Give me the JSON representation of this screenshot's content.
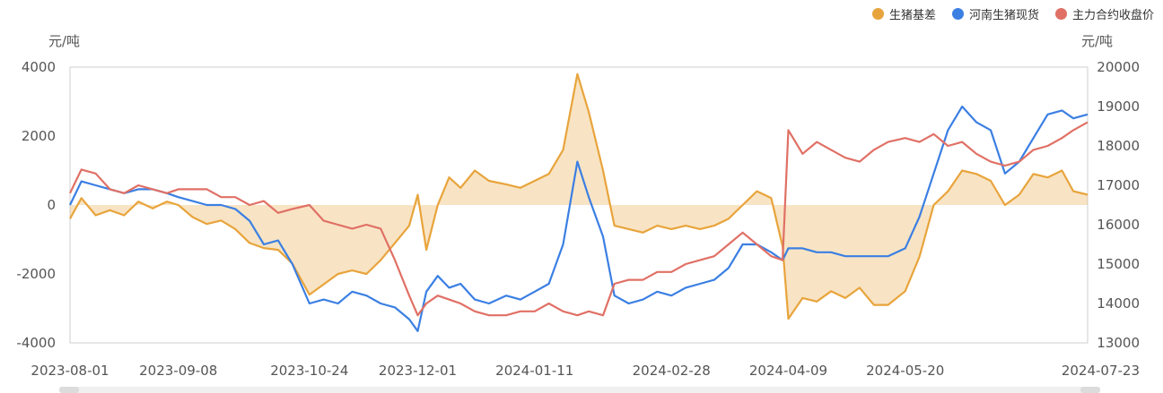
{
  "legend": [
    {
      "label": "生猪基差",
      "color": "#E8A43C"
    },
    {
      "label": "河南生猪现货",
      "color": "#3B7FE3"
    },
    {
      "label": "主力合约收盘价",
      "color": "#E07065"
    }
  ],
  "chart_data": {
    "type": "line",
    "left_unit": "元/吨",
    "right_unit": "元/吨",
    "left_axis": {
      "min": -4000,
      "max": 4000,
      "ticks": [
        -4000,
        -2000,
        0,
        2000,
        4000
      ]
    },
    "right_axis": {
      "min": 13000,
      "max": 20000,
      "ticks": [
        13000,
        14000,
        15000,
        16000,
        17000,
        18000,
        19000,
        20000
      ]
    },
    "x_start": "2023-08-01",
    "x_end": "2024-07-23",
    "x_ticks": [
      "2023-08-01",
      "2023-09-08",
      "2023-10-24",
      "2023-12-01",
      "2024-01-11",
      "2024-02-28",
      "2024-04-09",
      "2024-05-20",
      "2024-07-23"
    ],
    "series": [
      {
        "name": "生猪基差",
        "axis": "left",
        "color": "#E8A43C",
        "fill": true,
        "points": [
          [
            "2023-08-01",
            -400
          ],
          [
            "2023-08-05",
            200
          ],
          [
            "2023-08-10",
            -300
          ],
          [
            "2023-08-15",
            -150
          ],
          [
            "2023-08-20",
            -300
          ],
          [
            "2023-08-25",
            100
          ],
          [
            "2023-08-30",
            -100
          ],
          [
            "2023-09-04",
            100
          ],
          [
            "2023-09-08",
            0
          ],
          [
            "2023-09-13",
            -350
          ],
          [
            "2023-09-18",
            -550
          ],
          [
            "2023-09-23",
            -450
          ],
          [
            "2023-09-28",
            -700
          ],
          [
            "2023-10-03",
            -1100
          ],
          [
            "2023-10-08",
            -1250
          ],
          [
            "2023-10-13",
            -1300
          ],
          [
            "2023-10-18",
            -1700
          ],
          [
            "2023-10-24",
            -2600
          ],
          [
            "2023-10-29",
            -2300
          ],
          [
            "2023-11-03",
            -2000
          ],
          [
            "2023-11-08",
            -1900
          ],
          [
            "2023-11-13",
            -2000
          ],
          [
            "2023-11-18",
            -1600
          ],
          [
            "2023-11-23",
            -1100
          ],
          [
            "2023-11-28",
            -600
          ],
          [
            "2023-12-01",
            300
          ],
          [
            "2023-12-04",
            -1300
          ],
          [
            "2023-12-08",
            0
          ],
          [
            "2023-12-12",
            800
          ],
          [
            "2023-12-16",
            500
          ],
          [
            "2023-12-21",
            1000
          ],
          [
            "2023-12-26",
            700
          ],
          [
            "2024-01-01",
            600
          ],
          [
            "2024-01-06",
            500
          ],
          [
            "2024-01-11",
            700
          ],
          [
            "2024-01-16",
            900
          ],
          [
            "2024-01-21",
            1600
          ],
          [
            "2024-01-26",
            3800
          ],
          [
            "2024-01-30",
            2700
          ],
          [
            "2024-02-04",
            1000
          ],
          [
            "2024-02-08",
            -600
          ],
          [
            "2024-02-13",
            -700
          ],
          [
            "2024-02-18",
            -800
          ],
          [
            "2024-02-23",
            -600
          ],
          [
            "2024-02-28",
            -700
          ],
          [
            "2024-03-04",
            -600
          ],
          [
            "2024-03-09",
            -700
          ],
          [
            "2024-03-14",
            -600
          ],
          [
            "2024-03-19",
            -400
          ],
          [
            "2024-03-24",
            0
          ],
          [
            "2024-03-29",
            400
          ],
          [
            "2024-04-03",
            200
          ],
          [
            "2024-04-07",
            -1200
          ],
          [
            "2024-04-09",
            -3300
          ],
          [
            "2024-04-14",
            -2700
          ],
          [
            "2024-04-19",
            -2800
          ],
          [
            "2024-04-24",
            -2500
          ],
          [
            "2024-04-29",
            -2700
          ],
          [
            "2024-05-04",
            -2400
          ],
          [
            "2024-05-09",
            -2900
          ],
          [
            "2024-05-14",
            -2900
          ],
          [
            "2024-05-20",
            -2500
          ],
          [
            "2024-05-25",
            -1500
          ],
          [
            "2024-05-30",
            0
          ],
          [
            "2024-06-04",
            400
          ],
          [
            "2024-06-09",
            1000
          ],
          [
            "2024-06-14",
            900
          ],
          [
            "2024-06-19",
            700
          ],
          [
            "2024-06-24",
            0
          ],
          [
            "2024-06-29",
            300
          ],
          [
            "2024-07-04",
            900
          ],
          [
            "2024-07-09",
            800
          ],
          [
            "2024-07-14",
            1000
          ],
          [
            "2024-07-18",
            400
          ],
          [
            "2024-07-23",
            300
          ]
        ]
      },
      {
        "name": "河南生猪现货",
        "axis": "right",
        "color": "#3B7FE3",
        "points": [
          [
            "2023-08-01",
            16500
          ],
          [
            "2023-08-05",
            17100
          ],
          [
            "2023-08-10",
            17000
          ],
          [
            "2023-08-15",
            16900
          ],
          [
            "2023-08-20",
            16800
          ],
          [
            "2023-08-25",
            16900
          ],
          [
            "2023-08-30",
            16900
          ],
          [
            "2023-09-04",
            16800
          ],
          [
            "2023-09-08",
            16700
          ],
          [
            "2023-09-13",
            16600
          ],
          [
            "2023-09-18",
            16500
          ],
          [
            "2023-09-23",
            16500
          ],
          [
            "2023-09-28",
            16400
          ],
          [
            "2023-10-03",
            16100
          ],
          [
            "2023-10-08",
            15500
          ],
          [
            "2023-10-13",
            15600
          ],
          [
            "2023-10-18",
            15000
          ],
          [
            "2023-10-24",
            14000
          ],
          [
            "2023-10-29",
            14100
          ],
          [
            "2023-11-03",
            14000
          ],
          [
            "2023-11-08",
            14300
          ],
          [
            "2023-11-13",
            14200
          ],
          [
            "2023-11-18",
            14000
          ],
          [
            "2023-11-23",
            13900
          ],
          [
            "2023-11-28",
            13600
          ],
          [
            "2023-12-01",
            13300
          ],
          [
            "2023-12-04",
            14300
          ],
          [
            "2023-12-08",
            14700
          ],
          [
            "2023-12-12",
            14400
          ],
          [
            "2023-12-16",
            14500
          ],
          [
            "2023-12-21",
            14100
          ],
          [
            "2023-12-26",
            14000
          ],
          [
            "2024-01-01",
            14200
          ],
          [
            "2024-01-06",
            14100
          ],
          [
            "2024-01-11",
            14300
          ],
          [
            "2024-01-16",
            14500
          ],
          [
            "2024-01-21",
            15500
          ],
          [
            "2024-01-26",
            17600
          ],
          [
            "2024-01-30",
            16700
          ],
          [
            "2024-02-04",
            15700
          ],
          [
            "2024-02-08",
            14200
          ],
          [
            "2024-02-13",
            14000
          ],
          [
            "2024-02-18",
            14100
          ],
          [
            "2024-02-23",
            14300
          ],
          [
            "2024-02-28",
            14200
          ],
          [
            "2024-03-04",
            14400
          ],
          [
            "2024-03-09",
            14500
          ],
          [
            "2024-03-14",
            14600
          ],
          [
            "2024-03-19",
            14900
          ],
          [
            "2024-03-24",
            15500
          ],
          [
            "2024-03-29",
            15500
          ],
          [
            "2024-04-03",
            15300
          ],
          [
            "2024-04-07",
            15100
          ],
          [
            "2024-04-09",
            15400
          ],
          [
            "2024-04-14",
            15400
          ],
          [
            "2024-04-19",
            15300
          ],
          [
            "2024-04-24",
            15300
          ],
          [
            "2024-04-29",
            15200
          ],
          [
            "2024-05-04",
            15200
          ],
          [
            "2024-05-09",
            15200
          ],
          [
            "2024-05-14",
            15200
          ],
          [
            "2024-05-20",
            15400
          ],
          [
            "2024-05-25",
            16200
          ],
          [
            "2024-05-30",
            17300
          ],
          [
            "2024-06-04",
            18400
          ],
          [
            "2024-06-09",
            19000
          ],
          [
            "2024-06-14",
            18600
          ],
          [
            "2024-06-19",
            18400
          ],
          [
            "2024-06-24",
            17300
          ],
          [
            "2024-06-29",
            17600
          ],
          [
            "2024-07-04",
            18200
          ],
          [
            "2024-07-09",
            18800
          ],
          [
            "2024-07-14",
            18900
          ],
          [
            "2024-07-18",
            18700
          ],
          [
            "2024-07-23",
            18800
          ]
        ]
      },
      {
        "name": "主力合约收盘价",
        "axis": "right",
        "color": "#E07065",
        "points": [
          [
            "2023-08-01",
            16800
          ],
          [
            "2023-08-05",
            17400
          ],
          [
            "2023-08-10",
            17300
          ],
          [
            "2023-08-15",
            16900
          ],
          [
            "2023-08-20",
            16800
          ],
          [
            "2023-08-25",
            17000
          ],
          [
            "2023-08-30",
            16900
          ],
          [
            "2023-09-04",
            16800
          ],
          [
            "2023-09-08",
            16900
          ],
          [
            "2023-09-13",
            16900
          ],
          [
            "2023-09-18",
            16900
          ],
          [
            "2023-09-23",
            16700
          ],
          [
            "2023-09-28",
            16700
          ],
          [
            "2023-10-03",
            16500
          ],
          [
            "2023-10-08",
            16600
          ],
          [
            "2023-10-13",
            16300
          ],
          [
            "2023-10-18",
            16400
          ],
          [
            "2023-10-24",
            16500
          ],
          [
            "2023-10-29",
            16100
          ],
          [
            "2023-11-03",
            16000
          ],
          [
            "2023-11-08",
            15900
          ],
          [
            "2023-11-13",
            16000
          ],
          [
            "2023-11-18",
            15900
          ],
          [
            "2023-11-23",
            15100
          ],
          [
            "2023-11-28",
            14200
          ],
          [
            "2023-12-01",
            13700
          ],
          [
            "2023-12-04",
            14000
          ],
          [
            "2023-12-08",
            14200
          ],
          [
            "2023-12-12",
            14100
          ],
          [
            "2023-12-16",
            14000
          ],
          [
            "2023-12-21",
            13800
          ],
          [
            "2023-12-26",
            13700
          ],
          [
            "2024-01-01",
            13700
          ],
          [
            "2024-01-06",
            13800
          ],
          [
            "2024-01-11",
            13800
          ],
          [
            "2024-01-16",
            14000
          ],
          [
            "2024-01-21",
            13800
          ],
          [
            "2024-01-26",
            13700
          ],
          [
            "2024-01-30",
            13800
          ],
          [
            "2024-02-04",
            13700
          ],
          [
            "2024-02-08",
            14500
          ],
          [
            "2024-02-13",
            14600
          ],
          [
            "2024-02-18",
            14600
          ],
          [
            "2024-02-23",
            14800
          ],
          [
            "2024-02-28",
            14800
          ],
          [
            "2024-03-04",
            15000
          ],
          [
            "2024-03-09",
            15100
          ],
          [
            "2024-03-14",
            15200
          ],
          [
            "2024-03-19",
            15500
          ],
          [
            "2024-03-24",
            15800
          ],
          [
            "2024-03-29",
            15500
          ],
          [
            "2024-04-03",
            15200
          ],
          [
            "2024-04-07",
            15100
          ],
          [
            "2024-04-09",
            18400
          ],
          [
            "2024-04-14",
            17800
          ],
          [
            "2024-04-19",
            18100
          ],
          [
            "2024-04-24",
            17900
          ],
          [
            "2024-04-29",
            17700
          ],
          [
            "2024-05-04",
            17600
          ],
          [
            "2024-05-09",
            17900
          ],
          [
            "2024-05-14",
            18100
          ],
          [
            "2024-05-20",
            18200
          ],
          [
            "2024-05-25",
            18100
          ],
          [
            "2024-05-30",
            18300
          ],
          [
            "2024-06-04",
            18000
          ],
          [
            "2024-06-09",
            18100
          ],
          [
            "2024-06-14",
            17800
          ],
          [
            "2024-06-19",
            17600
          ],
          [
            "2024-06-24",
            17500
          ],
          [
            "2024-06-29",
            17600
          ],
          [
            "2024-07-04",
            17900
          ],
          [
            "2024-07-09",
            18000
          ],
          [
            "2024-07-14",
            18200
          ],
          [
            "2024-07-18",
            18400
          ],
          [
            "2024-07-23",
            18600
          ]
        ]
      }
    ]
  }
}
